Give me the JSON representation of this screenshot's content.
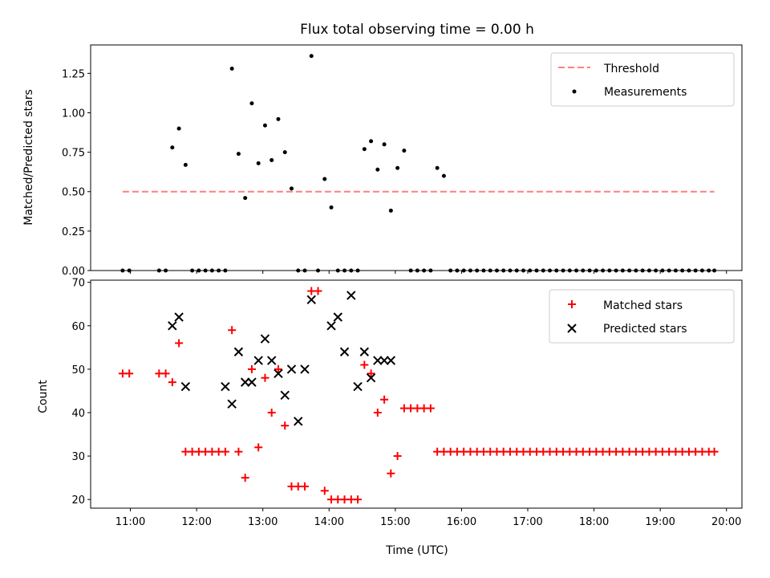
{
  "chart_data": [
    {
      "type": "scatter",
      "title": "Flux total observing time = 0.00 h",
      "xlabel": "",
      "ylabel": "Matched/Predicted stars",
      "xlim": [
        "10:24",
        "20:14"
      ],
      "ylim": [
        0,
        1.43
      ],
      "yticks": [
        "0.00",
        "0.25",
        "0.50",
        "0.75",
        "1.00",
        "1.25"
      ],
      "legend_position": "top-right",
      "threshold": {
        "name": "Threshold",
        "value": 0.5,
        "x_range": [
          "10:53",
          "19:49"
        ],
        "color": "#ff7f7f",
        "style": "dashed"
      },
      "series": [
        {
          "name": "Measurements",
          "color": "#000000",
          "marker": "dot",
          "x": [
            "10:53",
            "10:59",
            "11:26",
            "11:32",
            "11:38",
            "11:44",
            "11:50",
            "11:56",
            "12:02",
            "12:08",
            "12:14",
            "12:20",
            "12:26",
            "12:32",
            "12:38",
            "12:44",
            "12:50",
            "12:56",
            "13:02",
            "13:08",
            "13:14",
            "13:20",
            "13:26",
            "13:32",
            "13:38",
            "13:44",
            "13:50",
            "13:56",
            "14:02",
            "14:08",
            "14:14",
            "14:20",
            "14:26",
            "14:32",
            "14:38",
            "14:44",
            "14:50",
            "14:56",
            "15:02",
            "15:08",
            "15:14",
            "15:20",
            "15:26",
            "15:32",
            "15:38",
            "15:44",
            "15:50",
            "15:56",
            "16:02",
            "16:08",
            "16:14",
            "16:20",
            "16:26",
            "16:32",
            "16:38",
            "16:44",
            "16:50",
            "16:56",
            "17:02",
            "17:08",
            "17:14",
            "17:20",
            "17:26",
            "17:32",
            "17:38",
            "17:44",
            "17:50",
            "17:56",
            "18:02",
            "18:08",
            "18:14",
            "18:20",
            "18:26",
            "18:32",
            "18:38",
            "18:44",
            "18:50",
            "18:56",
            "19:02",
            "19:08",
            "19:14",
            "19:20",
            "19:26",
            "19:32",
            "19:38",
            "19:44",
            "19:49"
          ],
          "y": [
            0,
            0,
            0,
            0,
            0.78,
            0.9,
            0.67,
            0,
            0,
            0,
            0,
            0,
            0,
            1.28,
            0.74,
            0.46,
            1.06,
            0.68,
            0.92,
            0.7,
            0.96,
            0.75,
            0.52,
            0,
            0,
            1.36,
            0,
            0.58,
            0.4,
            0,
            0,
            0,
            0,
            0.77,
            0.82,
            0.64,
            0.8,
            0.38,
            0.65,
            0.76,
            0,
            0,
            0,
            0,
            0.65,
            0.6,
            0,
            0,
            0,
            0,
            0,
            0,
            0,
            0,
            0,
            0,
            0,
            0,
            0,
            0,
            0,
            0,
            0,
            0,
            0,
            0,
            0,
            0,
            0,
            0,
            0,
            0,
            0,
            0,
            0,
            0,
            0,
            0,
            0,
            0,
            0,
            0,
            0,
            0,
            0,
            0,
            0
          ]
        }
      ]
    },
    {
      "type": "scatter",
      "title": "",
      "xlabel": "Time (UTC)",
      "ylabel": "Count",
      "xlim": [
        "10:24",
        "20:14"
      ],
      "ylim": [
        18,
        70.5
      ],
      "xticks": [
        "11:00",
        "12:00",
        "13:00",
        "14:00",
        "15:00",
        "16:00",
        "17:00",
        "18:00",
        "19:00",
        "20:00"
      ],
      "yticks": [
        "20",
        "30",
        "40",
        "50",
        "60",
        "70"
      ],
      "legend_position": "top-right",
      "series": [
        {
          "name": "Matched stars",
          "color": "#ff0000",
          "marker": "plus",
          "x": [
            "10:53",
            "10:59",
            "11:26",
            "11:32",
            "11:38",
            "11:44",
            "11:50",
            "11:56",
            "12:02",
            "12:08",
            "12:14",
            "12:20",
            "12:26",
            "12:32",
            "12:38",
            "12:44",
            "12:50",
            "12:56",
            "13:02",
            "13:08",
            "13:14",
            "13:20",
            "13:26",
            "13:32",
            "13:38",
            "13:44",
            "13:50",
            "13:56",
            "14:02",
            "14:08",
            "14:14",
            "14:20",
            "14:26",
            "14:32",
            "14:38",
            "14:44",
            "14:50",
            "14:56",
            "15:02",
            "15:08",
            "15:14",
            "15:20",
            "15:26",
            "15:32",
            "15:38",
            "15:44",
            "15:50",
            "15:56",
            "16:02",
            "16:08",
            "16:14",
            "16:20",
            "16:26",
            "16:32",
            "16:38",
            "16:44",
            "16:50",
            "16:56",
            "17:02",
            "17:08",
            "17:14",
            "17:20",
            "17:26",
            "17:32",
            "17:38",
            "17:44",
            "17:50",
            "17:56",
            "18:02",
            "18:08",
            "18:14",
            "18:20",
            "18:26",
            "18:32",
            "18:38",
            "18:44",
            "18:50",
            "18:56",
            "19:02",
            "19:08",
            "19:14",
            "19:20",
            "19:26",
            "19:32",
            "19:38",
            "19:44",
            "19:49"
          ],
          "y": [
            49,
            49,
            49,
            49,
            47,
            56,
            31,
            31,
            31,
            31,
            31,
            31,
            31,
            59,
            31,
            25,
            50,
            32,
            48,
            40,
            50,
            37,
            23,
            23,
            23,
            68,
            68,
            22,
            20,
            20,
            20,
            20,
            20,
            51,
            49,
            40,
            43,
            26,
            30,
            41,
            41,
            41,
            41,
            41,
            31,
            31,
            31,
            31,
            31,
            31,
            31,
            31,
            31,
            31,
            31,
            31,
            31,
            31,
            31,
            31,
            31,
            31,
            31,
            31,
            31,
            31,
            31,
            31,
            31,
            31,
            31,
            31,
            31,
            31,
            31,
            31,
            31,
            31,
            31,
            31,
            31,
            31,
            31,
            31,
            31,
            31,
            31
          ]
        },
        {
          "name": "Predicted stars",
          "color": "#000000",
          "marker": "x",
          "x": [
            "11:38",
            "11:44",
            "11:50",
            "12:26",
            "12:32",
            "12:38",
            "12:44",
            "12:50",
            "12:56",
            "13:02",
            "13:08",
            "13:14",
            "13:20",
            "13:26",
            "13:32",
            "13:38",
            "13:44",
            "14:02",
            "14:08",
            "14:14",
            "14:20",
            "14:26",
            "14:32",
            "14:38",
            "14:44",
            "14:50",
            "14:56"
          ],
          "y": [
            60,
            62,
            46,
            46,
            42,
            54,
            47,
            47,
            52,
            57,
            52,
            49,
            44,
            50,
            38,
            50,
            66,
            60,
            62,
            54,
            67,
            46,
            54,
            48,
            52,
            52,
            52
          ]
        }
      ]
    }
  ]
}
